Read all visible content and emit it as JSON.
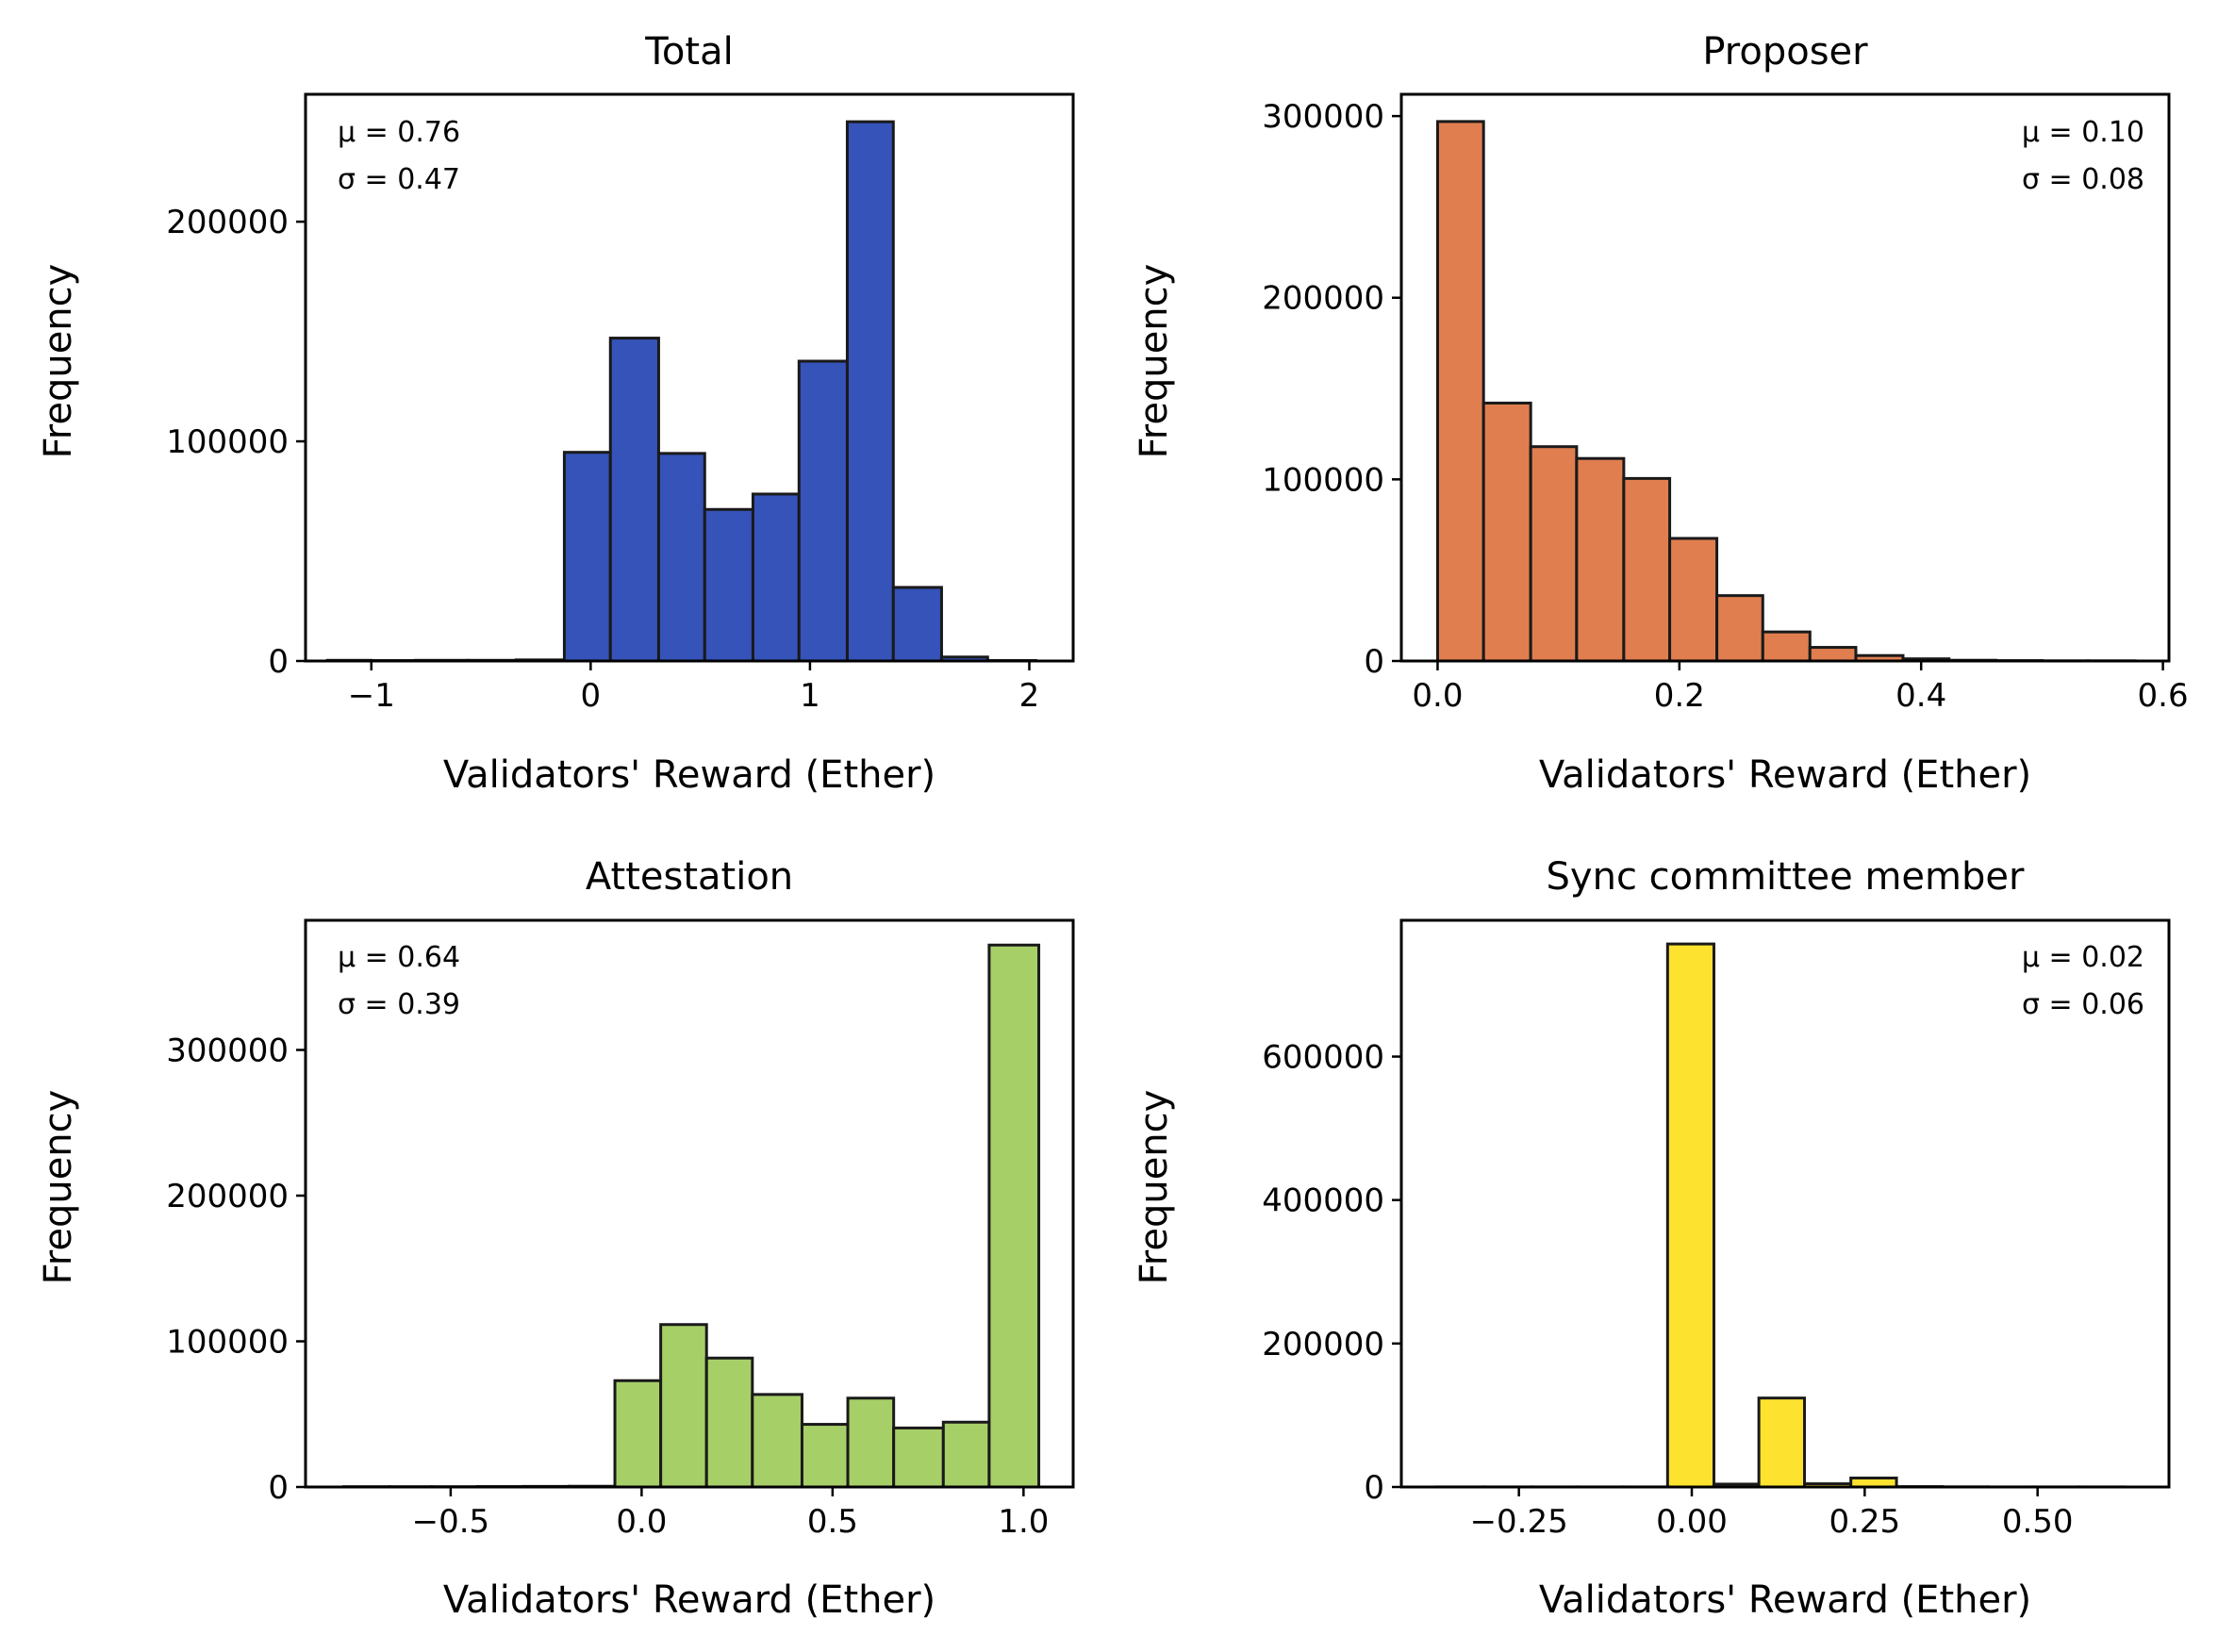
{
  "chart_data": [
    {
      "type": "bar",
      "title": "Total",
      "xlabel": "Validators' Reward (Ether)",
      "ylabel": "Frequency",
      "color": "#3553b8",
      "xlim": [
        -1.3,
        2.2
      ],
      "ylim": [
        0,
        258000
      ],
      "xticks": [
        {
          "v": -1,
          "label": "−1"
        },
        {
          "v": 0,
          "label": "0"
        },
        {
          "v": 1,
          "label": "1"
        },
        {
          "v": 2,
          "label": "2"
        }
      ],
      "yticks": [
        {
          "v": 0,
          "label": "0"
        },
        {
          "v": 100000,
          "label": "100000"
        },
        {
          "v": 200000,
          "label": "200000"
        }
      ],
      "bin_edges": [
        -1.2,
        -1.0,
        -0.8,
        -0.56,
        -0.34,
        -0.12,
        0.09,
        0.31,
        0.52,
        0.74,
        0.95,
        1.17,
        1.38,
        1.6,
        1.81,
        2.03
      ],
      "values": [
        300,
        200,
        300,
        300,
        500,
        95000,
        147000,
        94500,
        69000,
        76000,
        136500,
        245500,
        33500,
        1800,
        200
      ],
      "stats": {
        "mu": "μ = 0.76",
        "sigma": "σ = 0.47",
        "position": "top-left"
      }
    },
    {
      "type": "bar",
      "title": "Proposer",
      "xlabel": "Validators' Reward (Ether)",
      "ylabel": "Frequency",
      "color": "#e07e50",
      "xlim": [
        -0.03,
        0.605
      ],
      "ylim": [
        0,
        312000
      ],
      "xticks": [
        {
          "v": 0,
          "label": "0.0"
        },
        {
          "v": 0.2,
          "label": "0.2"
        },
        {
          "v": 0.4,
          "label": "0.4"
        },
        {
          "v": 0.6,
          "label": "0.6"
        }
      ],
      "yticks": [
        {
          "v": 0,
          "label": "0"
        },
        {
          "v": 100000,
          "label": "100000"
        },
        {
          "v": 200000,
          "label": "200000"
        },
        {
          "v": 300000,
          "label": "300000"
        }
      ],
      "bin_edges": [
        0,
        0.038,
        0.077,
        0.115,
        0.154,
        0.192,
        0.231,
        0.269,
        0.308,
        0.346,
        0.385,
        0.423,
        0.462,
        0.5,
        0.538,
        0.577
      ],
      "values": [
        297000,
        142000,
        118000,
        111500,
        100500,
        67500,
        36000,
        16000,
        7500,
        3000,
        1200,
        400,
        200,
        100,
        100
      ],
      "stats": {
        "mu": "μ = 0.10",
        "sigma": "σ = 0.08",
        "position": "top-right"
      }
    },
    {
      "type": "bar",
      "title": "Attestation",
      "xlabel": "Validators' Reward (Ether)",
      "ylabel": "Frequency",
      "color": "#a7cf68",
      "xlim": [
        -0.88,
        1.13
      ],
      "ylim": [
        0,
        389000
      ],
      "xticks": [
        {
          "v": -0.5,
          "label": "−0.5"
        },
        {
          "v": 0,
          "label": "0.0"
        },
        {
          "v": 0.5,
          "label": "0.5"
        },
        {
          "v": 1,
          "label": "1.0"
        }
      ],
      "yticks": [
        {
          "v": 0,
          "label": "0"
        },
        {
          "v": 100000,
          "label": "100000"
        },
        {
          "v": 200000,
          "label": "200000"
        },
        {
          "v": 300000,
          "label": "300000"
        }
      ],
      "bin_edges": [
        -0.78,
        -0.66,
        -0.55,
        -0.43,
        -0.31,
        -0.19,
        -0.07,
        0.05,
        0.17,
        0.29,
        0.42,
        0.54,
        0.66,
        0.79,
        0.91,
        1.04
      ],
      "values": [
        200,
        200,
        200,
        300,
        400,
        500,
        73000,
        111500,
        88500,
        63500,
        43000,
        61000,
        40500,
        44500,
        372000
      ],
      "stats": {
        "mu": "μ = 0.64",
        "sigma": "σ = 0.39",
        "position": "top-left"
      }
    },
    {
      "type": "bar",
      "title": "Sync committee member",
      "xlabel": "Validators' Reward (Ether)",
      "ylabel": "Frequency",
      "color": "#fde330",
      "xlim": [
        -0.42,
        0.69
      ],
      "ylim": [
        0,
        790000
      ],
      "xticks": [
        {
          "v": -0.25,
          "label": "−0.25"
        },
        {
          "v": 0,
          "label": "0.00"
        },
        {
          "v": 0.25,
          "label": "0.25"
        },
        {
          "v": 0.5,
          "label": "0.50"
        }
      ],
      "yticks": [
        {
          "v": 0,
          "label": "0"
        },
        {
          "v": 200000,
          "label": "200000"
        },
        {
          "v": 400000,
          "label": "400000"
        },
        {
          "v": 600000,
          "label": "600000"
        }
      ],
      "bin_edges": [
        -0.37,
        -0.3,
        -0.23,
        -0.165,
        -0.1,
        -0.035,
        0.032,
        0.097,
        0.163,
        0.23,
        0.296,
        0.362,
        0.428,
        0.494,
        0.56,
        0.626
      ],
      "values": [
        100,
        100,
        100,
        100,
        100,
        757000,
        4000,
        124000,
        4500,
        12500,
        500,
        200,
        100,
        100,
        100
      ],
      "stats": {
        "mu": "μ = 0.02",
        "sigma": "σ = 0.06",
        "position": "top-right"
      }
    }
  ]
}
